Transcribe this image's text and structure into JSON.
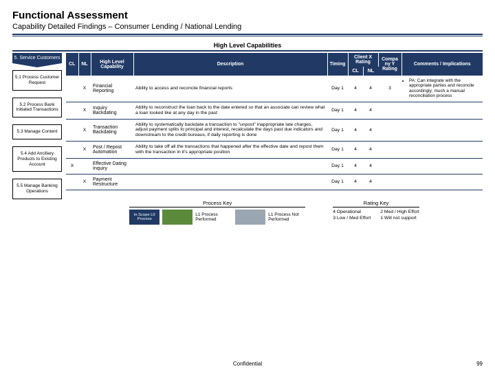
{
  "title": "Functional Assessment",
  "subtitle": "Capability Detailed Findings – Consumer Lending / National Lending",
  "caps_title": "High Level Capabilities",
  "sidebar": {
    "header": "5. Service Customers",
    "items": [
      "5.1 Process Customer Request",
      "5.2 Process Bank Initiated Transactions",
      "5.3 Manage Content",
      "5.4 Add Ancillary Products to Existing Account",
      "5.5 Manage Banking Operations"
    ]
  },
  "table": {
    "headers": {
      "cl": "CL",
      "nl": "NL",
      "hlc": "High Level Capability",
      "desc": "Description",
      "timing": "Timing",
      "clientx": "Client X Rating",
      "cl2": "CL",
      "nl2": "NL",
      "compy": "Compa ny Y Rating",
      "comments": "Comments / Implications"
    },
    "rows": [
      {
        "cl": "",
        "nl": "X",
        "cap": "Financial Reporting",
        "desc": "Ability to access and reconcile financial reports",
        "timing": "Day 1",
        "rcl": "4",
        "rnl": "4",
        "ry": "3",
        "cmt": "PA: Can integrate with the appropriate parties and reconcile accordingly; much a manual reconciliation process"
      },
      {
        "cl": "",
        "nl": "X",
        "cap": "Inquiry Backdating",
        "desc": "Ability to reconstruct the loan back to the date entered so that an associate can review what a loan looked like at any day in the past",
        "timing": "Day 1",
        "rcl": "4",
        "rnl": "4",
        "ry": "",
        "cmt": ""
      },
      {
        "cl": "",
        "nl": "X",
        "cap": "Transaction Backdating",
        "desc": "Ability to systematically backdate a transaction to \"unpost\" inappropriate late charges, adjust payment splits to principal and interest, recalculate the days past due indicators and downstream to the credit bureaus, if daily reporting is done",
        "timing": "Day 1",
        "rcl": "4",
        "rnl": "4",
        "ry": "",
        "cmt": ""
      },
      {
        "cl": "",
        "nl": "X",
        "cap": "Post / Repost Automation",
        "desc": "Ability to take off all the transactions that happened after the effective date and repost them with the transaction in it's appropriate position",
        "timing": "Day 1",
        "rcl": "4",
        "rnl": "4",
        "ry": "",
        "cmt": ""
      },
      {
        "cl": "X",
        "nl": "",
        "cap": "Effective Dating Inquiry",
        "desc": "",
        "timing": "Day 1",
        "rcl": "4",
        "rnl": "4",
        "ry": "",
        "cmt": ""
      },
      {
        "cl": "",
        "nl": "X",
        "cap": "Payment Restructure",
        "desc": "",
        "timing": "Day 1",
        "rcl": "4",
        "rnl": "4",
        "ry": "",
        "cmt": ""
      }
    ]
  },
  "process_key": {
    "title": "Process Key",
    "scope": "In Scope L0 Process",
    "perf": "L1 Process Performed",
    "notperf": "L1 Process Not Performed",
    "colors": {
      "scope": "#203a65",
      "perf": "#5b8a3a",
      "notperf": "#9aa6b2"
    }
  },
  "rating_key": {
    "title": "Rating Key",
    "items": [
      "4  Operational",
      "2  Med / High Effort",
      "3  Low / Med Effort",
      "1  Will not support"
    ]
  },
  "confidential": "Confidential",
  "page_no": "99",
  "colors": {
    "brand": "#203a65"
  }
}
